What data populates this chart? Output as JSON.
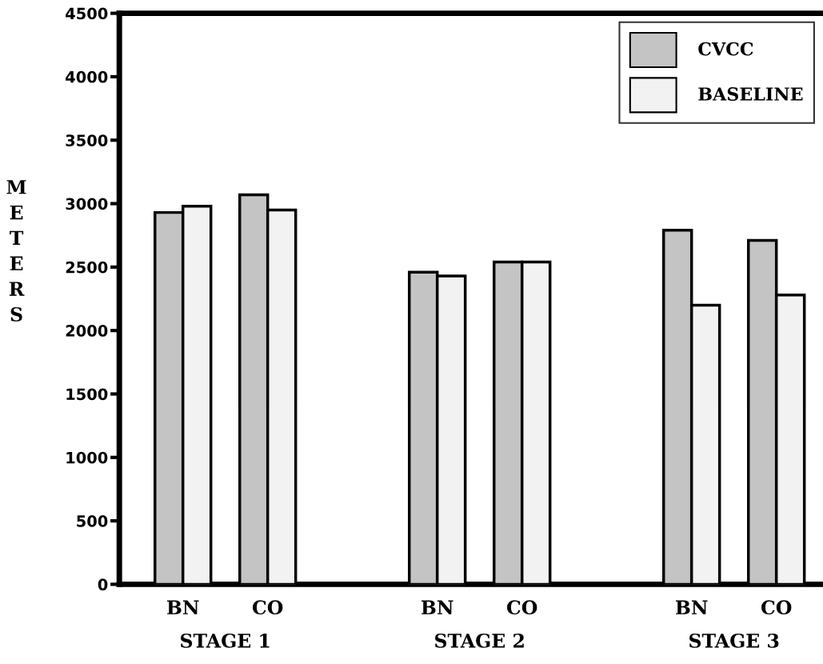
{
  "chart_data": {
    "type": "bar",
    "ylabel": "METERS",
    "categories": [
      "BN",
      "CO",
      "BN",
      "CO",
      "BN",
      "CO"
    ],
    "series": [
      {
        "name": "CVCC",
        "color": "#c4c4c4",
        "values": [
          2930,
          3070,
          2460,
          2540,
          2790,
          2710
        ]
      },
      {
        "name": "BASELINE",
        "color": "#f2f2f2",
        "values": [
          2980,
          2950,
          2430,
          2540,
          2200,
          2280
        ]
      }
    ],
    "annotations": [
      "STAGE 1",
      "STAGE 2",
      "STAGE 3"
    ],
    "ylim": [
      0,
      4500
    ],
    "yticks": [
      0,
      500,
      1000,
      1500,
      2000,
      2500,
      3000,
      3500,
      4000,
      4500
    ],
    "grid": false,
    "legend": "top right"
  }
}
